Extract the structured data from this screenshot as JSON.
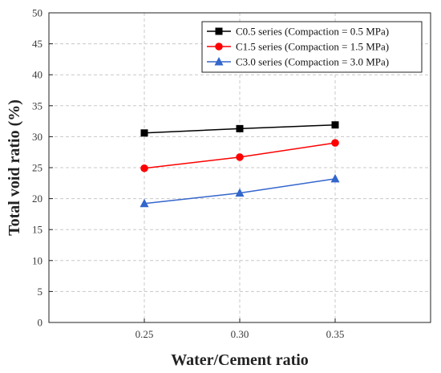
{
  "chart_data": {
    "type": "line",
    "xlabel": "Water/Cement ratio",
    "ylabel": "Total void ratio (%)",
    "x": [
      0.25,
      0.3,
      0.35
    ],
    "x_tick_labels": [
      "0.25",
      "0.30",
      "0.35"
    ],
    "xlim": [
      0.2,
      0.4
    ],
    "ylim": [
      0,
      50
    ],
    "y_ticks": [
      0,
      5,
      10,
      15,
      20,
      25,
      30,
      35,
      40,
      45,
      50
    ],
    "grid": true,
    "legend_position": "top-right",
    "series": [
      {
        "name": "C0.5 series (Compaction = 0.5 MPa)",
        "values": [
          30.6,
          31.3,
          31.9
        ],
        "color": "#000000",
        "marker": "square"
      },
      {
        "name": "C1.5 series (Compaction = 1.5 MPa)",
        "values": [
          24.9,
          26.7,
          29.0
        ],
        "color": "#ff0000",
        "marker": "circle"
      },
      {
        "name": "C3.0 series (Compaction = 3.0 MPa)",
        "values": [
          19.2,
          20.9,
          23.2
        ],
        "color": "#3366cc",
        "marker": "triangle"
      }
    ]
  }
}
